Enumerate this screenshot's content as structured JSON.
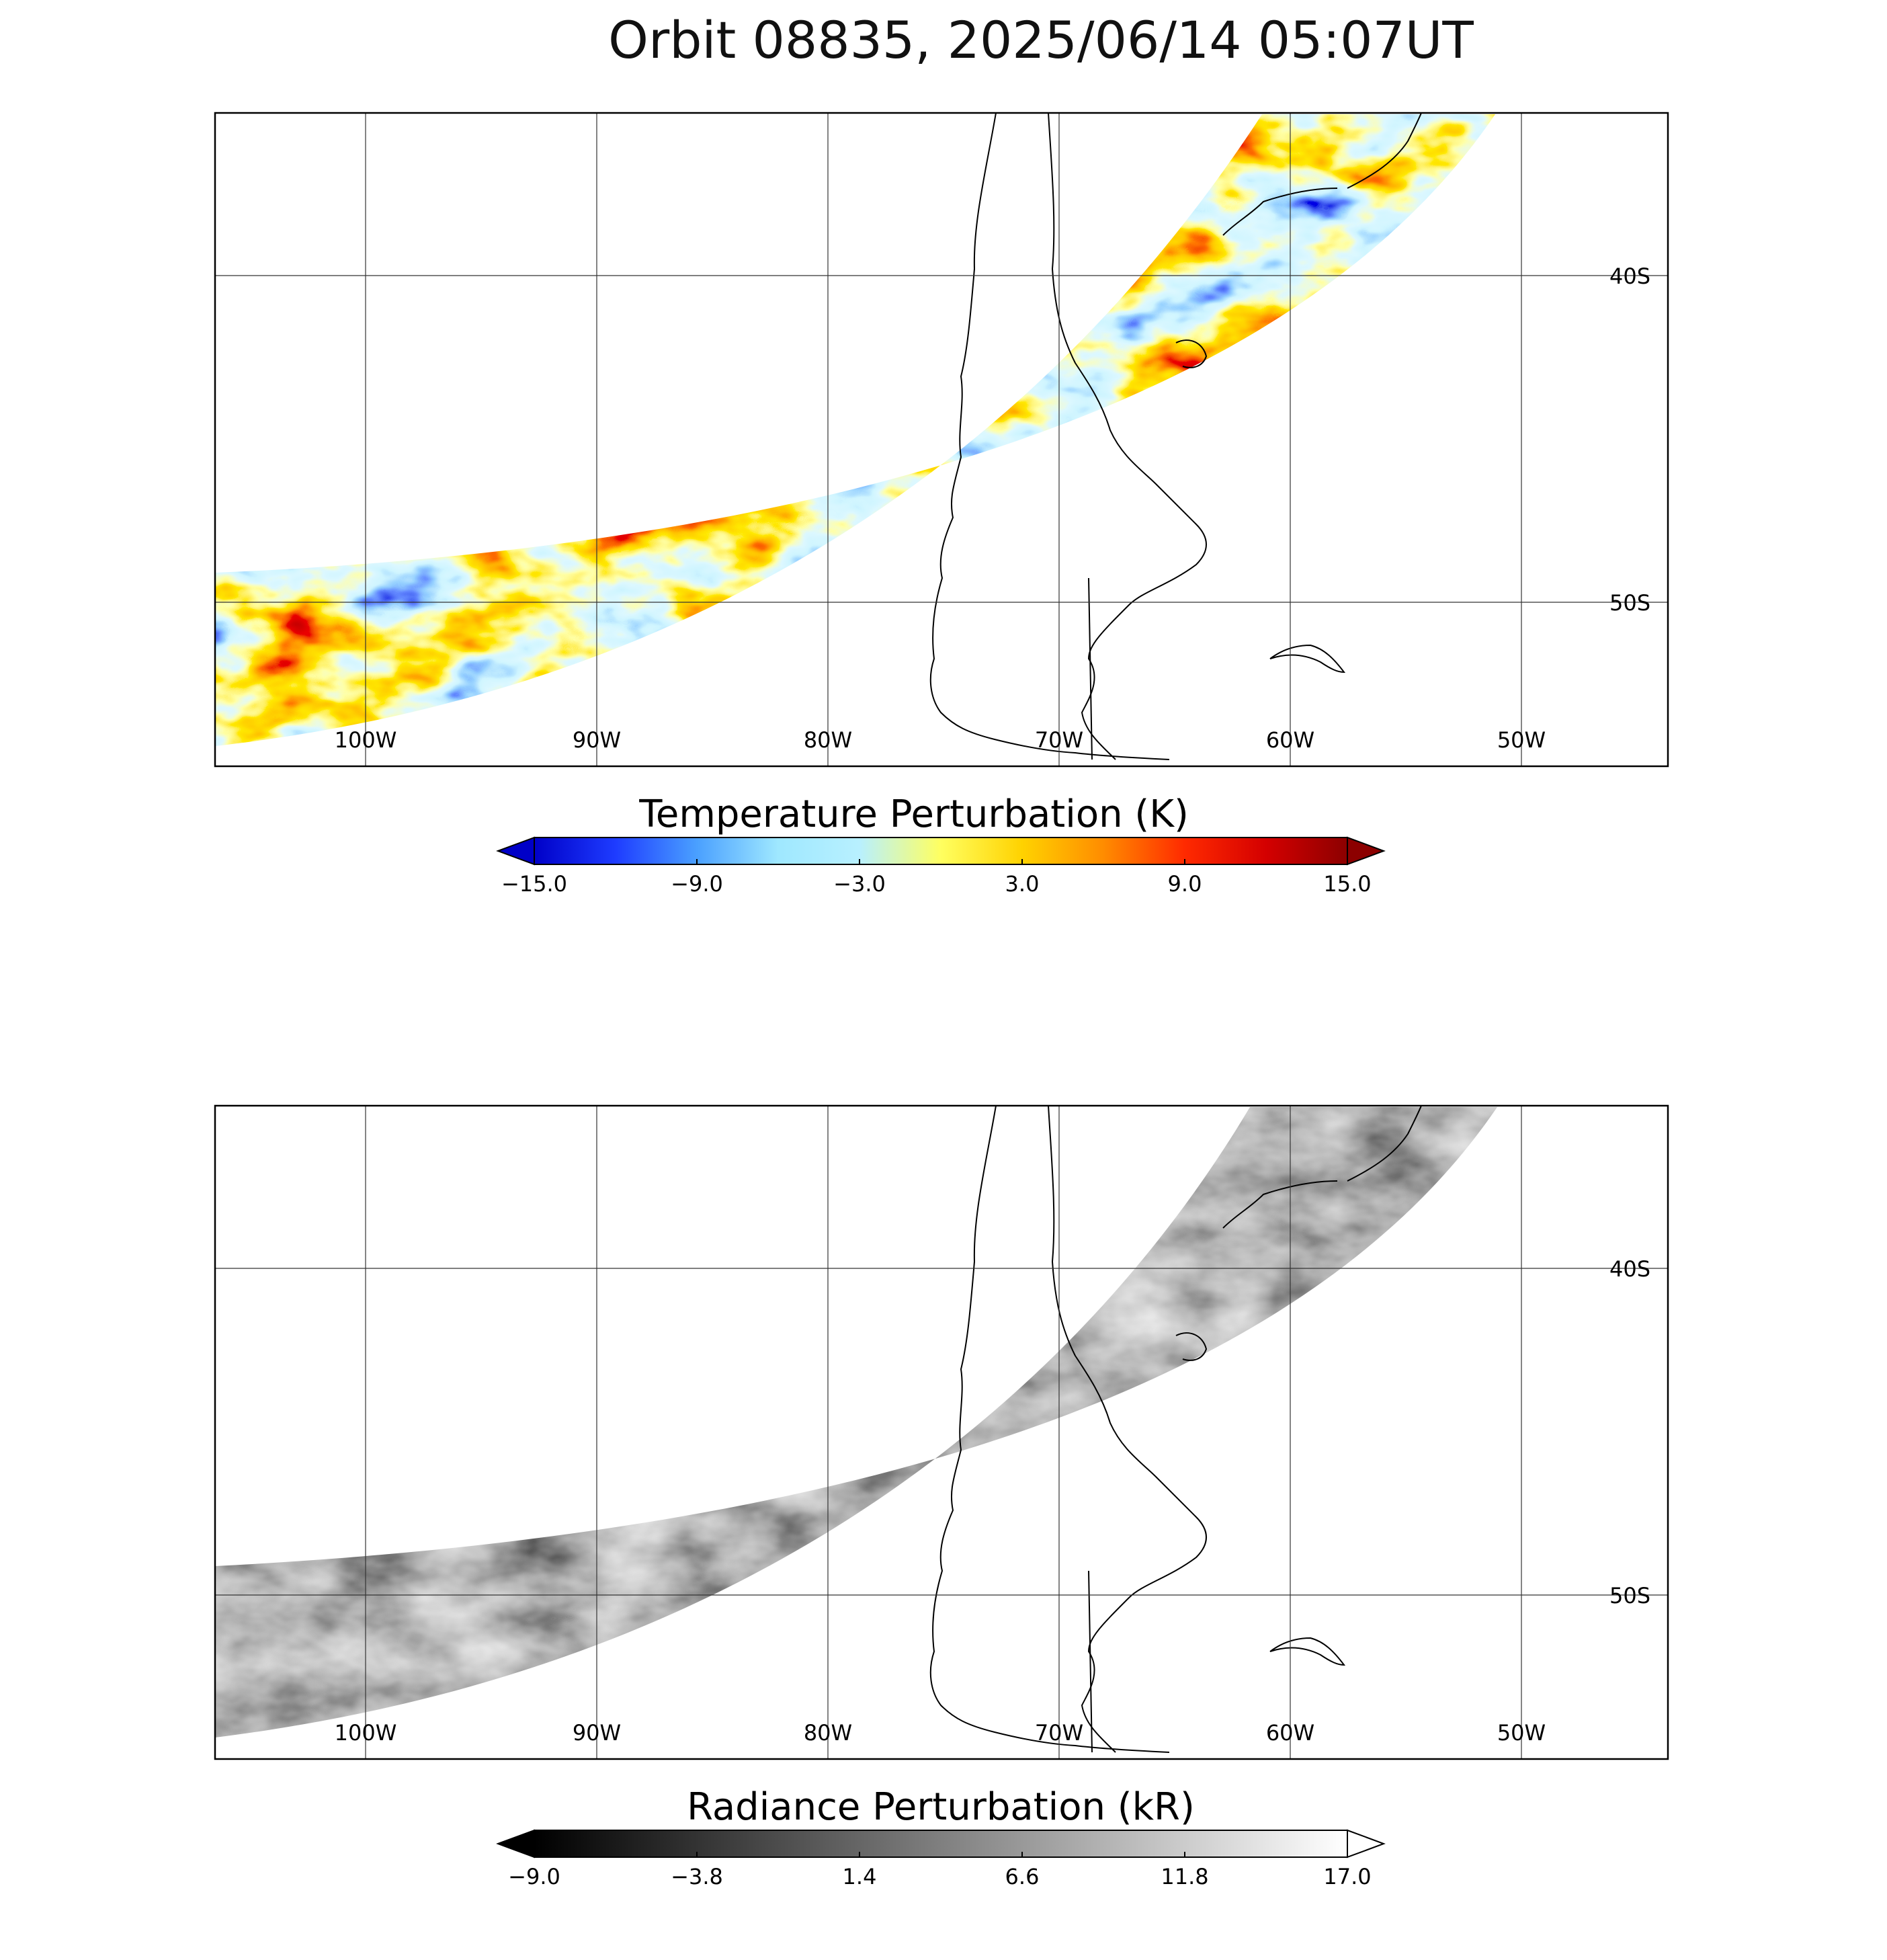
{
  "title": "Orbit 08835, 2025/06/14 05:07UT",
  "grid": {
    "lon_labels": [
      "100W",
      "90W",
      "80W",
      "70W",
      "60W",
      "50W"
    ],
    "lat_labels": [
      "40S",
      "50S"
    ]
  },
  "panels": [
    {
      "id": "temperature",
      "colorbar_title": "Temperature Perturbation (K)",
      "colorbar_ticks": [
        "−15.0",
        "−9.0",
        "−3.0",
        "3.0",
        "9.0",
        "15.0"
      ],
      "colorbar_range": [
        -15.0,
        15.0
      ],
      "colormap": [
        "#0000c8",
        "#1e3cff",
        "#4aa0ff",
        "#9fe8ff",
        "#b8f0ff",
        "#ffff60",
        "#ffd200",
        "#ff8c00",
        "#ff2a00",
        "#d40000",
        "#8c0000"
      ],
      "extend_colors": {
        "low": "#0000c8",
        "high": "#8c0000"
      }
    },
    {
      "id": "radiance",
      "colorbar_title": "Radiance Perturbation (kR)",
      "colorbar_ticks": [
        "−9.0",
        "−3.8",
        "1.4",
        "6.6",
        "11.8",
        "17.0"
      ],
      "colorbar_range": [
        -9.0,
        17.0
      ],
      "colormap": [
        "#000000",
        "#ffffff"
      ],
      "extend_colors": {
        "low": "#000000",
        "high": "#ffffff"
      }
    }
  ]
}
